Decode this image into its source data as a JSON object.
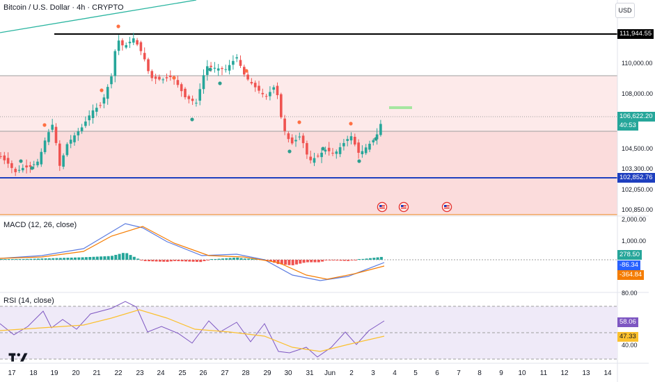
{
  "header": {
    "title": "Bitcoin / U.S. Dollar · 4h · CRYPTO",
    "currency": "USD"
  },
  "colors": {
    "up": "#26a69a",
    "down": "#ef5350",
    "macd": "#5b7be0",
    "signal": "#f57c00",
    "rsi": "#7e57c2",
    "rsi_ma": "#fbc02d",
    "support": "#1e3fbf",
    "resistance": "#000000",
    "zone": "#f7d7d7"
  },
  "price_axis": {
    "ticks": [
      "110,000.00",
      "108,000.00",
      "104,500.00",
      "103,300.00",
      "102,050.00",
      "100,850.00"
    ]
  },
  "price_tags": {
    "resistance": "111,944.55",
    "last": "106,622.20",
    "countdown": "40:53",
    "support": "102,852.76"
  },
  "macd": {
    "label": "MACD (12, 26, close)",
    "ticks": [
      "2,000.00",
      "1,000.00"
    ],
    "hist": "278.50",
    "macd": "-86.34",
    "signal": "-364.84"
  },
  "rsi": {
    "label": "RSI (14, close)",
    "ticks": [
      "80.00",
      "40.00"
    ],
    "value": "58.06",
    "ma": "47.33"
  },
  "x_axis": {
    "labels": [
      "17",
      "18",
      "19",
      "20",
      "21",
      "22",
      "23",
      "24",
      "25",
      "26",
      "27",
      "28",
      "29",
      "30",
      "31",
      "Jun",
      "2",
      "3",
      "4",
      "5",
      "6",
      "7",
      "8",
      "9",
      "10",
      "11",
      "12",
      "13",
      "14"
    ]
  },
  "events": {
    "count": 3,
    "icon": "us-flag-icon"
  }
}
